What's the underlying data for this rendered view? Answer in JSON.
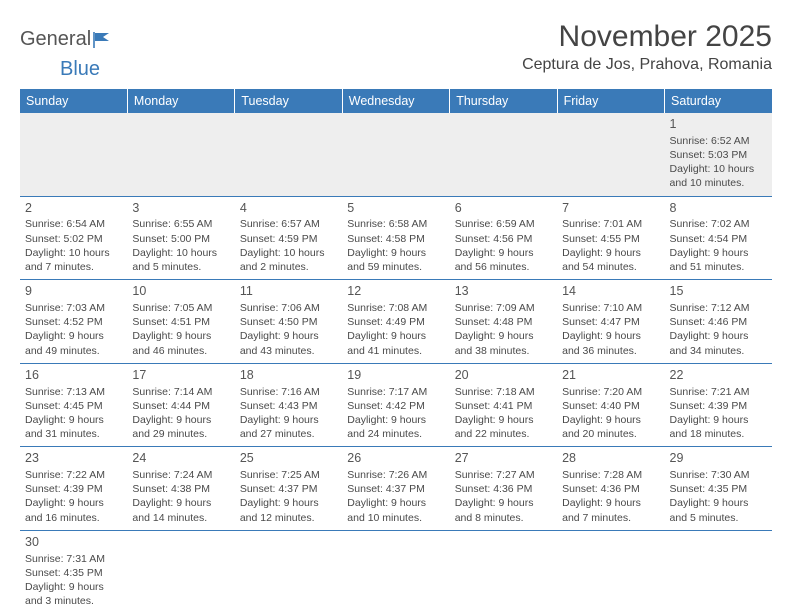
{
  "logo": {
    "text1": "General",
    "text2": "Blue"
  },
  "title": "November 2025",
  "location": "Ceptura de Jos, Prahova, Romania",
  "colors": {
    "header_bg": "#3a7ab8",
    "header_text": "#ffffff",
    "row_border": "#3a7ab8",
    "first_row_bg": "#eeeeee",
    "body_text": "#4a4a4a",
    "page_bg": "#ffffff"
  },
  "typography": {
    "title_fontsize": 30,
    "location_fontsize": 16,
    "header_fontsize": 12.5,
    "cell_fontsize": 10.5,
    "daynum_fontsize": 12.5
  },
  "columns": [
    "Sunday",
    "Monday",
    "Tuesday",
    "Wednesday",
    "Thursday",
    "Friday",
    "Saturday"
  ],
  "weeks": [
    [
      null,
      null,
      null,
      null,
      null,
      null,
      {
        "d": "1",
        "sr": "Sunrise: 6:52 AM",
        "ss": "Sunset: 5:03 PM",
        "dl1": "Daylight: 10 hours",
        "dl2": "and 10 minutes."
      }
    ],
    [
      {
        "d": "2",
        "sr": "Sunrise: 6:54 AM",
        "ss": "Sunset: 5:02 PM",
        "dl1": "Daylight: 10 hours",
        "dl2": "and 7 minutes."
      },
      {
        "d": "3",
        "sr": "Sunrise: 6:55 AM",
        "ss": "Sunset: 5:00 PM",
        "dl1": "Daylight: 10 hours",
        "dl2": "and 5 minutes."
      },
      {
        "d": "4",
        "sr": "Sunrise: 6:57 AM",
        "ss": "Sunset: 4:59 PM",
        "dl1": "Daylight: 10 hours",
        "dl2": "and 2 minutes."
      },
      {
        "d": "5",
        "sr": "Sunrise: 6:58 AM",
        "ss": "Sunset: 4:58 PM",
        "dl1": "Daylight: 9 hours",
        "dl2": "and 59 minutes."
      },
      {
        "d": "6",
        "sr": "Sunrise: 6:59 AM",
        "ss": "Sunset: 4:56 PM",
        "dl1": "Daylight: 9 hours",
        "dl2": "and 56 minutes."
      },
      {
        "d": "7",
        "sr": "Sunrise: 7:01 AM",
        "ss": "Sunset: 4:55 PM",
        "dl1": "Daylight: 9 hours",
        "dl2": "and 54 minutes."
      },
      {
        "d": "8",
        "sr": "Sunrise: 7:02 AM",
        "ss": "Sunset: 4:54 PM",
        "dl1": "Daylight: 9 hours",
        "dl2": "and 51 minutes."
      }
    ],
    [
      {
        "d": "9",
        "sr": "Sunrise: 7:03 AM",
        "ss": "Sunset: 4:52 PM",
        "dl1": "Daylight: 9 hours",
        "dl2": "and 49 minutes."
      },
      {
        "d": "10",
        "sr": "Sunrise: 7:05 AM",
        "ss": "Sunset: 4:51 PM",
        "dl1": "Daylight: 9 hours",
        "dl2": "and 46 minutes."
      },
      {
        "d": "11",
        "sr": "Sunrise: 7:06 AM",
        "ss": "Sunset: 4:50 PM",
        "dl1": "Daylight: 9 hours",
        "dl2": "and 43 minutes."
      },
      {
        "d": "12",
        "sr": "Sunrise: 7:08 AM",
        "ss": "Sunset: 4:49 PM",
        "dl1": "Daylight: 9 hours",
        "dl2": "and 41 minutes."
      },
      {
        "d": "13",
        "sr": "Sunrise: 7:09 AM",
        "ss": "Sunset: 4:48 PM",
        "dl1": "Daylight: 9 hours",
        "dl2": "and 38 minutes."
      },
      {
        "d": "14",
        "sr": "Sunrise: 7:10 AM",
        "ss": "Sunset: 4:47 PM",
        "dl1": "Daylight: 9 hours",
        "dl2": "and 36 minutes."
      },
      {
        "d": "15",
        "sr": "Sunrise: 7:12 AM",
        "ss": "Sunset: 4:46 PM",
        "dl1": "Daylight: 9 hours",
        "dl2": "and 34 minutes."
      }
    ],
    [
      {
        "d": "16",
        "sr": "Sunrise: 7:13 AM",
        "ss": "Sunset: 4:45 PM",
        "dl1": "Daylight: 9 hours",
        "dl2": "and 31 minutes."
      },
      {
        "d": "17",
        "sr": "Sunrise: 7:14 AM",
        "ss": "Sunset: 4:44 PM",
        "dl1": "Daylight: 9 hours",
        "dl2": "and 29 minutes."
      },
      {
        "d": "18",
        "sr": "Sunrise: 7:16 AM",
        "ss": "Sunset: 4:43 PM",
        "dl1": "Daylight: 9 hours",
        "dl2": "and 27 minutes."
      },
      {
        "d": "19",
        "sr": "Sunrise: 7:17 AM",
        "ss": "Sunset: 4:42 PM",
        "dl1": "Daylight: 9 hours",
        "dl2": "and 24 minutes."
      },
      {
        "d": "20",
        "sr": "Sunrise: 7:18 AM",
        "ss": "Sunset: 4:41 PM",
        "dl1": "Daylight: 9 hours",
        "dl2": "and 22 minutes."
      },
      {
        "d": "21",
        "sr": "Sunrise: 7:20 AM",
        "ss": "Sunset: 4:40 PM",
        "dl1": "Daylight: 9 hours",
        "dl2": "and 20 minutes."
      },
      {
        "d": "22",
        "sr": "Sunrise: 7:21 AM",
        "ss": "Sunset: 4:39 PM",
        "dl1": "Daylight: 9 hours",
        "dl2": "and 18 minutes."
      }
    ],
    [
      {
        "d": "23",
        "sr": "Sunrise: 7:22 AM",
        "ss": "Sunset: 4:39 PM",
        "dl1": "Daylight: 9 hours",
        "dl2": "and 16 minutes."
      },
      {
        "d": "24",
        "sr": "Sunrise: 7:24 AM",
        "ss": "Sunset: 4:38 PM",
        "dl1": "Daylight: 9 hours",
        "dl2": "and 14 minutes."
      },
      {
        "d": "25",
        "sr": "Sunrise: 7:25 AM",
        "ss": "Sunset: 4:37 PM",
        "dl1": "Daylight: 9 hours",
        "dl2": "and 12 minutes."
      },
      {
        "d": "26",
        "sr": "Sunrise: 7:26 AM",
        "ss": "Sunset: 4:37 PM",
        "dl1": "Daylight: 9 hours",
        "dl2": "and 10 minutes."
      },
      {
        "d": "27",
        "sr": "Sunrise: 7:27 AM",
        "ss": "Sunset: 4:36 PM",
        "dl1": "Daylight: 9 hours",
        "dl2": "and 8 minutes."
      },
      {
        "d": "28",
        "sr": "Sunrise: 7:28 AM",
        "ss": "Sunset: 4:36 PM",
        "dl1": "Daylight: 9 hours",
        "dl2": "and 7 minutes."
      },
      {
        "d": "29",
        "sr": "Sunrise: 7:30 AM",
        "ss": "Sunset: 4:35 PM",
        "dl1": "Daylight: 9 hours",
        "dl2": "and 5 minutes."
      }
    ],
    [
      {
        "d": "30",
        "sr": "Sunrise: 7:31 AM",
        "ss": "Sunset: 4:35 PM",
        "dl1": "Daylight: 9 hours",
        "dl2": "and 3 minutes."
      },
      null,
      null,
      null,
      null,
      null,
      null
    ]
  ]
}
